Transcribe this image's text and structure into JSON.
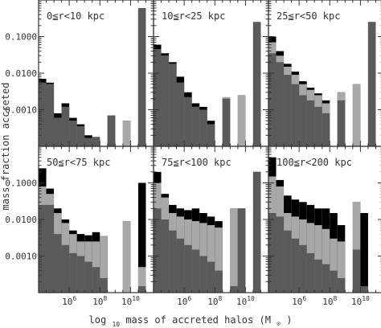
{
  "ylabel": "mass fraction accreted",
  "xlabel": "log",
  "xlabel_sub": "10",
  "xlabel_rest": " mass of accreted halos (M",
  "xlabel_sun": "⊙",
  "xlabel_end": ")",
  "x_tick_labels": [
    {
      "base": "10",
      "exp": "6",
      "x": 6
    },
    {
      "base": "10",
      "exp": "8",
      "x": 8
    },
    {
      "base": "10",
      "exp": "10",
      "x": 10
    }
  ],
  "y_tick_labels": [
    {
      "text": "0.1000",
      "y": 0.1
    },
    {
      "text": "0.0100",
      "y": 0.01
    },
    {
      "text": "0.0010",
      "y": 0.001
    }
  ],
  "colors": {
    "black": "#000000",
    "light": "#a8a8a8",
    "dark": "#5a5a5a",
    "frame": "#333333"
  },
  "chart_data": [
    {
      "type": "bar",
      "title": "0≦r<10 kpc",
      "yscale": "log",
      "ylim": [
        0.0001,
        1.0
      ],
      "xlim": [
        4.0,
        11.5
      ],
      "bins": [
        {
          "x0": 4.0,
          "x1": 4.5,
          "total": 0.007,
          "light": 0.0055,
          "dark": 0.0055
        },
        {
          "x0": 4.5,
          "x1": 5.0,
          "total": 0.0055,
          "light": 0.005,
          "dark": 0.005
        },
        {
          "x0": 5.0,
          "x1": 5.5,
          "total": 0.0008,
          "light": 0.0006,
          "dark": 0.0006
        },
        {
          "x0": 5.5,
          "x1": 6.0,
          "total": 0.0015,
          "light": 0.0012,
          "dark": 0.0012
        },
        {
          "x0": 6.0,
          "x1": 6.5,
          "total": 0.0006,
          "light": 0.0005,
          "dark": 0.0005
        },
        {
          "x0": 6.5,
          "x1": 7.0,
          "total": 0.0004,
          "light": 0.00035,
          "dark": 0.00035
        },
        {
          "x0": 7.0,
          "x1": 7.5,
          "total": 0.0002,
          "light": 0.00017,
          "dark": 0.00017
        },
        {
          "x0": 7.5,
          "x1": 8.0,
          "total": 0.00018,
          "light": 0.00018,
          "dark": 0.00018
        },
        {
          "x0": 8.5,
          "x1": 9.0,
          "total": 0.0007,
          "light": 0.0007,
          "dark": 0.0007
        },
        {
          "x0": 9.5,
          "x1": 10.0,
          "total": 0.0005,
          "light": 0.0005,
          "dark": 0.0001
        },
        {
          "x0": 10.5,
          "x1": 11.0,
          "total": 0.6,
          "light": 0.6,
          "dark": 0.6
        }
      ]
    },
    {
      "type": "bar",
      "title": "10≦r<25 kpc",
      "yscale": "log",
      "ylim": [
        0.0001,
        1.0
      ],
      "xlim": [
        4.0,
        11.5
      ],
      "bins": [
        {
          "x0": 4.0,
          "x1": 4.5,
          "total": 0.06,
          "light": 0.045,
          "dark": 0.045
        },
        {
          "x0": 4.5,
          "x1": 5.0,
          "total": 0.035,
          "light": 0.03,
          "dark": 0.03
        },
        {
          "x0": 5.0,
          "x1": 5.5,
          "total": 0.02,
          "light": 0.018,
          "dark": 0.018
        },
        {
          "x0": 5.5,
          "x1": 6.0,
          "total": 0.008,
          "light": 0.0055,
          "dark": 0.0055
        },
        {
          "x0": 6.0,
          "x1": 6.5,
          "total": 0.003,
          "light": 0.0022,
          "dark": 0.0022
        },
        {
          "x0": 6.5,
          "x1": 7.0,
          "total": 0.0015,
          "light": 0.0012,
          "dark": 0.0012
        },
        {
          "x0": 7.0,
          "x1": 7.5,
          "total": 0.0012,
          "light": 0.001,
          "dark": 0.001
        },
        {
          "x0": 7.5,
          "x1": 8.0,
          "total": 0.0005,
          "light": 0.0004,
          "dark": 0.0004
        },
        {
          "x0": 8.5,
          "x1": 9.0,
          "total": 0.0022,
          "light": 0.0022,
          "dark": 0.002
        },
        {
          "x0": 9.5,
          "x1": 10.0,
          "total": 0.0025,
          "light": 0.0025,
          "dark": 0.0001
        },
        {
          "x0": 10.5,
          "x1": 11.0,
          "total": 0.25,
          "light": 0.25,
          "dark": 0.25
        }
      ]
    },
    {
      "type": "bar",
      "title": "25≦r<50 kpc",
      "yscale": "log",
      "ylim": [
        0.0001,
        1.0
      ],
      "xlim": [
        4.0,
        11.5
      ],
      "bins": [
        {
          "x0": 4.0,
          "x1": 4.5,
          "total": 0.1,
          "light": 0.07,
          "dark": 0.035
        },
        {
          "x0": 4.5,
          "x1": 5.0,
          "total": 0.04,
          "light": 0.03,
          "dark": 0.02
        },
        {
          "x0": 5.0,
          "x1": 5.5,
          "total": 0.018,
          "light": 0.015,
          "dark": 0.009
        },
        {
          "x0": 5.5,
          "x1": 6.0,
          "total": 0.011,
          "light": 0.009,
          "dark": 0.005
        },
        {
          "x0": 6.0,
          "x1": 6.5,
          "total": 0.006,
          "light": 0.005,
          "dark": 0.0025
        },
        {
          "x0": 6.5,
          "x1": 7.0,
          "total": 0.004,
          "light": 0.0035,
          "dark": 0.0018
        },
        {
          "x0": 7.0,
          "x1": 7.5,
          "total": 0.0028,
          "light": 0.0025,
          "dark": 0.0012
        },
        {
          "x0": 7.5,
          "x1": 8.0,
          "total": 0.0018,
          "light": 0.0015,
          "dark": 0.0008
        },
        {
          "x0": 8.5,
          "x1": 9.0,
          "total": 0.003,
          "light": 0.003,
          "dark": 0.0018
        },
        {
          "x0": 9.5,
          "x1": 10.0,
          "total": 0.005,
          "light": 0.005,
          "dark": 0.0001
        },
        {
          "x0": 10.5,
          "x1": 11.0,
          "total": 0.25,
          "light": 0.25,
          "dark": 0.25
        }
      ]
    },
    {
      "type": "bar",
      "title": "50≦r<75 kpc",
      "yscale": "log",
      "ylim": [
        0.0001,
        1.0
      ],
      "xlim": [
        4.0,
        11.5
      ],
      "bins": [
        {
          "x0": 4.0,
          "x1": 4.5,
          "total": 0.25,
          "light": 0.08,
          "dark": 0.025
        },
        {
          "x0": 4.5,
          "x1": 5.0,
          "total": 0.07,
          "light": 0.05,
          "dark": 0.025
        },
        {
          "x0": 5.0,
          "x1": 5.5,
          "total": 0.02,
          "light": 0.015,
          "dark": 0.004
        },
        {
          "x0": 5.5,
          "x1": 6.0,
          "total": 0.01,
          "light": 0.008,
          "dark": 0.002
        },
        {
          "x0": 6.0,
          "x1": 6.5,
          "total": 0.005,
          "light": 0.004,
          "dark": 0.0012
        },
        {
          "x0": 6.5,
          "x1": 7.0,
          "total": 0.004,
          "light": 0.0025,
          "dark": 0.001
        },
        {
          "x0": 7.0,
          "x1": 7.5,
          "total": 0.0037,
          "light": 0.0025,
          "dark": 0.0007
        },
        {
          "x0": 7.5,
          "x1": 8.0,
          "total": 0.0045,
          "light": 0.0025,
          "dark": 0.0005
        },
        {
          "x0": 8.0,
          "x1": 8.5,
          "total": 0.0035,
          "light": 0.0035,
          "dark": 0.00025
        },
        {
          "x0": 9.5,
          "x1": 10.0,
          "total": 0.009,
          "light": 0.009,
          "dark": 0.0001
        },
        {
          "x0": 10.5,
          "x1": 11.0,
          "total": 0.1,
          "light": 0.0005,
          "dark": 0.00015
        }
      ]
    },
    {
      "type": "bar",
      "title": "75≦r<100 kpc",
      "yscale": "log",
      "ylim": [
        0.0001,
        1.0
      ],
      "xlim": [
        4.0,
        11.5
      ],
      "bins": [
        {
          "x0": 4.0,
          "x1": 4.5,
          "total": 0.2,
          "light": 0.1,
          "dark": 0.02
        },
        {
          "x0": 4.5,
          "x1": 5.0,
          "total": 0.05,
          "light": 0.04,
          "dark": 0.01
        },
        {
          "x0": 5.0,
          "x1": 5.5,
          "total": 0.025,
          "light": 0.015,
          "dark": 0.005
        },
        {
          "x0": 5.5,
          "x1": 6.0,
          "total": 0.02,
          "light": 0.012,
          "dark": 0.003
        },
        {
          "x0": 6.0,
          "x1": 6.5,
          "total": 0.018,
          "light": 0.01,
          "dark": 0.002
        },
        {
          "x0": 6.5,
          "x1": 7.0,
          "total": 0.02,
          "light": 0.009,
          "dark": 0.0015
        },
        {
          "x0": 7.0,
          "x1": 7.5,
          "total": 0.015,
          "light": 0.008,
          "dark": 0.001
        },
        {
          "x0": 7.5,
          "x1": 8.0,
          "total": 0.012,
          "light": 0.007,
          "dark": 0.0007
        },
        {
          "x0": 8.0,
          "x1": 8.5,
          "total": 0.009,
          "light": 0.006,
          "dark": 0.0004
        },
        {
          "x0": 9.0,
          "x1": 9.5,
          "total": 0.02,
          "light": 0.02,
          "dark": 0.00015
        },
        {
          "x0": 9.5,
          "x1": 10.0,
          "total": 0.02,
          "light": 0.02,
          "dark": 0.02
        },
        {
          "x0": 10.5,
          "x1": 11.0,
          "total": 0.2,
          "light": 0.2,
          "dark": 0.2
        }
      ]
    },
    {
      "type": "bar",
      "title": "100≦r<200 kpc",
      "yscale": "log",
      "ylim": [
        0.0001,
        1.0
      ],
      "xlim": [
        4.0,
        11.5
      ],
      "bins": [
        {
          "x0": 4.0,
          "x1": 4.5,
          "total": 0.5,
          "light": 0.15,
          "dark": 0.015
        },
        {
          "x0": 4.5,
          "x1": 5.0,
          "total": 0.12,
          "light": 0.08,
          "dark": 0.012
        },
        {
          "x0": 5.0,
          "x1": 5.5,
          "total": 0.045,
          "light": 0.015,
          "dark": 0.005
        },
        {
          "x0": 5.5,
          "x1": 6.0,
          "total": 0.035,
          "light": 0.012,
          "dark": 0.003
        },
        {
          "x0": 6.0,
          "x1": 6.5,
          "total": 0.03,
          "light": 0.01,
          "dark": 0.002
        },
        {
          "x0": 6.5,
          "x1": 7.0,
          "total": 0.025,
          "light": 0.008,
          "dark": 0.0012
        },
        {
          "x0": 7.0,
          "x1": 7.5,
          "total": 0.02,
          "light": 0.007,
          "dark": 0.0008
        },
        {
          "x0": 7.5,
          "x1": 8.0,
          "total": 0.02,
          "light": 0.0055,
          "dark": 0.0006
        },
        {
          "x0": 8.0,
          "x1": 8.5,
          "total": 0.015,
          "light": 0.003,
          "dark": 0.0004
        },
        {
          "x0": 8.5,
          "x1": 9.0,
          "total": 0.007,
          "light": 0.0025,
          "dark": 0.00025
        },
        {
          "x0": 9.5,
          "x1": 10.0,
          "total": 0.03,
          "light": 0.03,
          "dark": 0.0015
        },
        {
          "x0": 10.0,
          "x1": 10.5,
          "total": 0.015,
          "light": 0.00015,
          "dark": 0.00015
        }
      ]
    }
  ]
}
